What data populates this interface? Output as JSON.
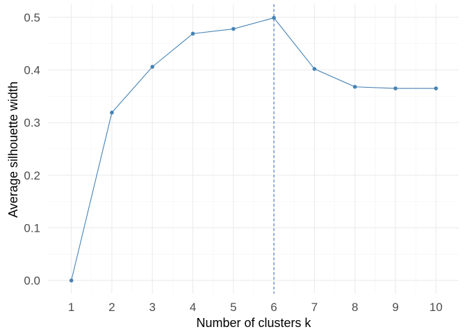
{
  "chart_data": {
    "type": "line",
    "xlabel": "Number of clusters k",
    "ylabel": "Average silhouette width",
    "x": [
      1,
      2,
      3,
      4,
      5,
      6,
      7,
      8,
      9,
      10
    ],
    "series": [
      {
        "values": [
          0.0,
          0.319,
          0.406,
          0.469,
          0.478,
          0.499,
          0.402,
          0.368,
          0.365,
          0.365
        ]
      }
    ],
    "x_ticks": [
      "1",
      "2",
      "3",
      "4",
      "5",
      "6",
      "7",
      "8",
      "9",
      "10"
    ],
    "y_ticks": [
      "0.0",
      "0.1",
      "0.2",
      "0.3",
      "0.4",
      "0.5"
    ],
    "ylim": [
      -0.025,
      0.525
    ],
    "reference_line": {
      "axis": "x",
      "value": 6,
      "style": "dashed"
    },
    "grid": true,
    "colors": {
      "line": "#4682b4",
      "vline": "#4472c4"
    }
  }
}
